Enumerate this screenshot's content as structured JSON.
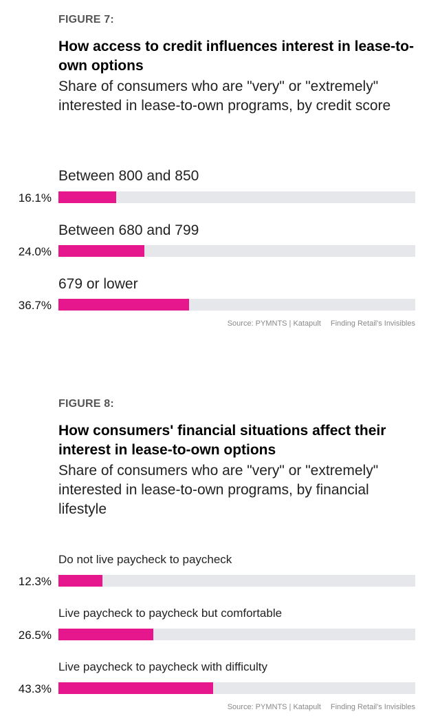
{
  "chart_data": [
    {
      "type": "bar",
      "figure_label": "FIGURE 7:",
      "title": "How access to credit influences interest in lease-to-own options",
      "subtitle": "Share of consumers who are \"very\" or \"extremely\" interested in lease-to-own programs, by credit score",
      "categories": [
        "Between 800 and 850",
        "Between 680 and 799",
        "679 or lower"
      ],
      "values": [
        16.1,
        24.0,
        36.7
      ],
      "value_labels": [
        "16.1%",
        "24.0%",
        "36.7%"
      ],
      "xlim": [
        0,
        100
      ],
      "grid": false,
      "source": "Source: PYMNTS | Katapult",
      "report": "Finding Retail's Invisibles",
      "colors": {
        "bar": "#e6168c",
        "track": "#e6e7ea"
      }
    },
    {
      "type": "bar",
      "figure_label": "FIGURE 8:",
      "title": "How consumers' financial situations affect their interest in lease-to-own options",
      "subtitle": "Share of consumers who are \"very\" or \"extremely\" interested in lease-to-own programs, by financial lifestyle",
      "categories": [
        "Do not live paycheck to paycheck",
        "Live paycheck to paycheck but comfortable",
        "Live paycheck to paycheck with difficulty"
      ],
      "values": [
        12.3,
        26.5,
        43.3
      ],
      "value_labels": [
        "12.3%",
        "26.5%",
        "43.3%"
      ],
      "xlim": [
        0,
        100
      ],
      "grid": false,
      "source": "Source: PYMNTS | Katapult",
      "report": "Finding Retail's Invisibles",
      "colors": {
        "bar": "#e6168c",
        "track": "#e6e7ea"
      }
    }
  ]
}
